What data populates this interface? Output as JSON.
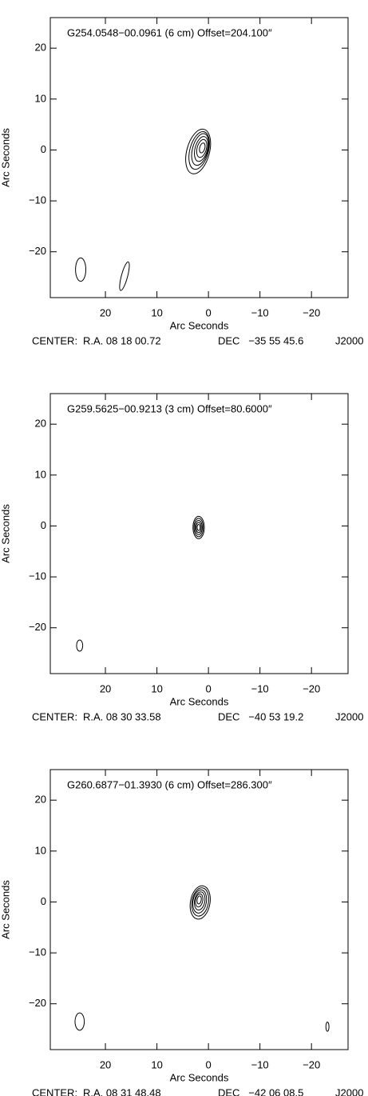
{
  "chart_data": [
    {
      "type": "contour",
      "title": "G254.0548−00.0961 (6 cm) Offset=204.100″",
      "xlabel": "Arc Seconds",
      "ylabel": "Arc Seconds",
      "xlim": [
        30.7,
        -27.1
      ],
      "ylim": [
        -29,
        26
      ],
      "xticks": [
        20,
        10,
        0,
        {
          "value": -10,
          "label": "−10"
        },
        {
          "value": -20,
          "label": "−20"
        }
      ],
      "yticks": [
        20,
        10,
        0,
        {
          "value": -10,
          "label": "−10"
        },
        {
          "value": -20,
          "label": "−20"
        }
      ],
      "color": "#000000",
      "contours": [
        {
          "x": 2.0,
          "y": -0.3,
          "rx": 2.2,
          "ry": 4.5,
          "angle": 15
        },
        {
          "x": 1.8,
          "y": -0.1,
          "rx": 1.8,
          "ry": 3.8,
          "angle": 15
        },
        {
          "x": 1.6,
          "y": 0.1,
          "rx": 1.5,
          "ry": 3.2,
          "angle": 15
        },
        {
          "x": 1.4,
          "y": 0.2,
          "rx": 1.2,
          "ry": 2.5,
          "angle": 15
        },
        {
          "x": 1.3,
          "y": 0.3,
          "rx": 0.9,
          "ry": 1.8,
          "angle": 15
        },
        {
          "x": 1.2,
          "y": 0.4,
          "rx": 0.5,
          "ry": 1.0,
          "angle": 15
        },
        {
          "x": 16.3,
          "y": -24.8,
          "rx": 0.6,
          "ry": 2.9,
          "angle": 15
        }
      ],
      "beam": {
        "x": 24.8,
        "y": -23.5,
        "rx": 1.0,
        "ry": 2.3,
        "angle": 0
      },
      "center": {
        "label": "CENTER:",
        "ra": "R.A. 08 18 00.72",
        "dec": "DEC   −35 55 45.6",
        "epoch": "J2000"
      }
    },
    {
      "type": "contour",
      "title": "G259.5625−00.9213 (3 cm) Offset=80.6000″",
      "xlabel": "Arc Seconds",
      "ylabel": "Arc Seconds",
      "xlim": [
        30.7,
        -27.1
      ],
      "ylim": [
        -29,
        26
      ],
      "xticks": [
        20,
        10,
        0,
        {
          "value": -10,
          "label": "−10"
        },
        {
          "value": -20,
          "label": "−20"
        }
      ],
      "yticks": [
        20,
        10,
        0,
        {
          "value": -10,
          "label": "−10"
        },
        {
          "value": -20,
          "label": "−20"
        }
      ],
      "color": "#000000",
      "contours": [
        {
          "x": 1.9,
          "y": -0.3,
          "rx": 1.1,
          "ry": 2.2,
          "angle": 0
        },
        {
          "x": 1.9,
          "y": -0.3,
          "rx": 0.9,
          "ry": 1.8,
          "angle": 0
        },
        {
          "x": 1.9,
          "y": -0.3,
          "rx": 0.7,
          "ry": 1.4,
          "angle": 0
        },
        {
          "x": 1.9,
          "y": -0.3,
          "rx": 0.5,
          "ry": 1.0,
          "angle": 0
        },
        {
          "x": 1.9,
          "y": -0.3,
          "rx": 0.3,
          "ry": 0.6,
          "angle": 0
        }
      ],
      "beam": {
        "x": 25,
        "y": -23.5,
        "rx": 0.6,
        "ry": 1.1,
        "angle": 0
      },
      "center": {
        "label": "CENTER:",
        "ra": "R.A. 08 30 33.58",
        "dec": "DEC   −40 53 19.2",
        "epoch": "J2000"
      }
    },
    {
      "type": "contour",
      "title": "G260.6877−01.3930 (6 cm) Offset=286.300″",
      "xlabel": "Arc Seconds",
      "ylabel": "Arc Seconds",
      "xlim": [
        30.7,
        -27.1
      ],
      "ylim": [
        -29,
        26
      ],
      "xticks": [
        20,
        10,
        0,
        {
          "value": -10,
          "label": "−10"
        },
        {
          "value": -20,
          "label": "−20"
        }
      ],
      "yticks": [
        20,
        10,
        0,
        {
          "value": -10,
          "label": "−10"
        },
        {
          "value": -20,
          "label": "−20"
        }
      ],
      "color": "#000000",
      "contours": [
        {
          "x": 1.6,
          "y": -0.1,
          "rx": 1.9,
          "ry": 3.3,
          "angle": 10
        },
        {
          "x": 1.6,
          "y": 0.0,
          "rx": 1.6,
          "ry": 2.8,
          "angle": 10
        },
        {
          "x": 1.7,
          "y": 0.1,
          "rx": 1.3,
          "ry": 2.3,
          "angle": 10
        },
        {
          "x": 1.7,
          "y": 0.2,
          "rx": 1.0,
          "ry": 1.8,
          "angle": 10
        },
        {
          "x": 1.8,
          "y": 0.3,
          "rx": 0.7,
          "ry": 1.3,
          "angle": 10
        },
        {
          "x": 1.8,
          "y": 0.4,
          "rx": 0.4,
          "ry": 0.8,
          "angle": 10
        },
        {
          "x": -23.1,
          "y": -24.5,
          "rx": 0.3,
          "ry": 0.9,
          "angle": 0
        }
      ],
      "beam": {
        "x": 25,
        "y": -23.5,
        "rx": 0.9,
        "ry": 1.7,
        "angle": 0
      },
      "center": {
        "label": "CENTER:",
        "ra": "R.A. 08 31 48.48",
        "dec": "DEC   −42 06 08.5",
        "epoch": "J2000"
      }
    }
  ]
}
